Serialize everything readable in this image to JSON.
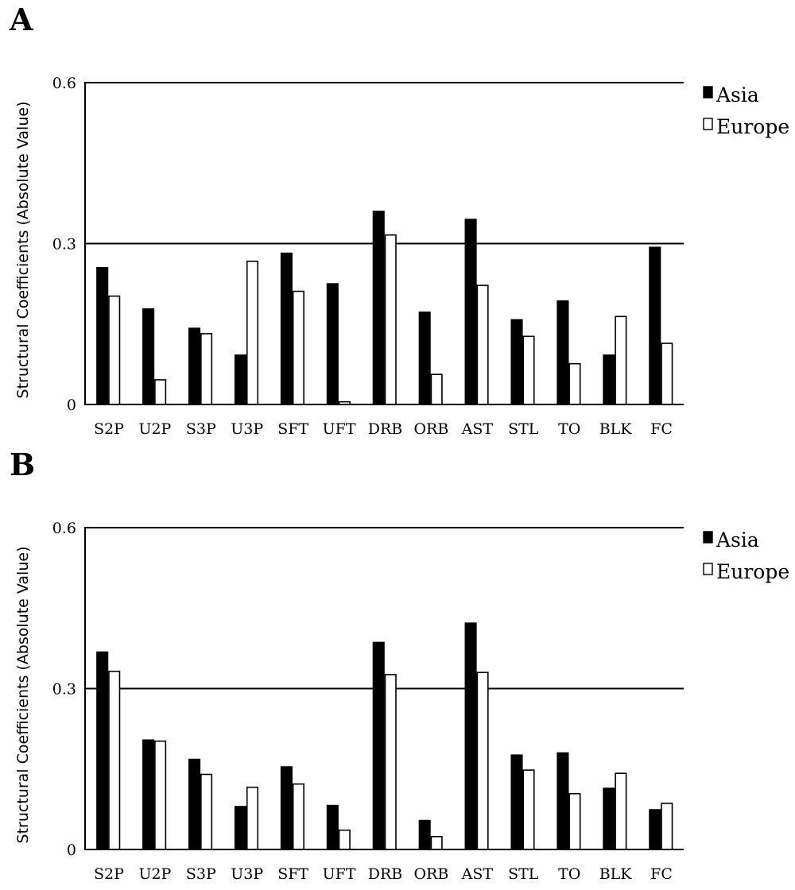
{
  "chart_data": [
    {
      "panel": "A",
      "type": "bar",
      "categories": [
        "S2P",
        "U2P",
        "S3P",
        "U3P",
        "SFT",
        "UFT",
        "DRB",
        "ORB",
        "AST",
        "STL",
        "TO",
        "BLK",
        "FC"
      ],
      "series": [
        {
          "name": "Asia",
          "color": "#000000",
          "values": [
            0.255,
            0.178,
            0.142,
            0.092,
            0.282,
            0.225,
            0.36,
            0.172,
            0.345,
            0.158,
            0.193,
            0.092,
            0.293
          ]
        },
        {
          "name": "Europe",
          "color": "#ffffff",
          "values": [
            0.202,
            0.046,
            0.132,
            0.267,
            0.211,
            0.005,
            0.316,
            0.056,
            0.222,
            0.127,
            0.076,
            0.164,
            0.114
          ]
        }
      ],
      "ylabel": "Structural Coefficients (Absolute Value)",
      "xlabel": "",
      "ylim": [
        0,
        0.6
      ],
      "yticks": [
        "0",
        "0.3",
        "0.6"
      ],
      "grid": "horizontal lines at 0.3 and 0.6",
      "legend": "right"
    },
    {
      "panel": "B",
      "type": "bar",
      "categories": [
        "S2P",
        "U2P",
        "S3P",
        "U3P",
        "SFT",
        "UFT",
        "DRB",
        "ORB",
        "AST",
        "STL",
        "TO",
        "BLK",
        "FC"
      ],
      "series": [
        {
          "name": "Asia",
          "color": "#000000",
          "values": [
            0.368,
            0.204,
            0.168,
            0.08,
            0.154,
            0.082,
            0.386,
            0.054,
            0.422,
            0.176,
            0.18,
            0.114,
            0.074
          ]
        },
        {
          "name": "Europe",
          "color": "#ffffff",
          "values": [
            0.332,
            0.202,
            0.14,
            0.116,
            0.122,
            0.036,
            0.326,
            0.024,
            0.33,
            0.148,
            0.104,
            0.142,
            0.086
          ]
        }
      ],
      "ylabel": "Structural Coefficients (Absolute Value)",
      "xlabel": "",
      "ylim": [
        0,
        0.6
      ],
      "yticks": [
        "0",
        "0.3",
        "0.6"
      ],
      "grid": "horizontal lines at 0.3 and 0.6",
      "legend": "right"
    }
  ]
}
